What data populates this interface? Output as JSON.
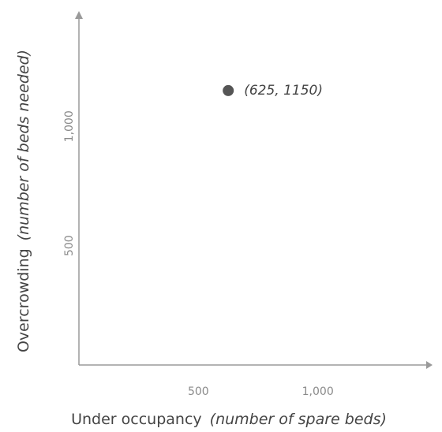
{
  "chart_data": {
    "type": "scatter",
    "x": [
      625
    ],
    "values": [
      1150
    ],
    "value_labels": [
      "(625, 1150)"
    ],
    "color": "#555555",
    "xlim": [
      0,
      1480
    ],
    "ylim": [
      0,
      1480
    ],
    "xticks": [
      500,
      {
        "value": 1000,
        "label": "1,000"
      }
    ],
    "yticks": [
      500,
      {
        "value": 1000,
        "label": "1,000"
      }
    ],
    "xlabel": {
      "text": "Under occupancy",
      "note": "(number of spare beds)"
    },
    "ylabel": {
      "text": "Overcrowding",
      "note": "(number of beds needed)"
    }
  }
}
